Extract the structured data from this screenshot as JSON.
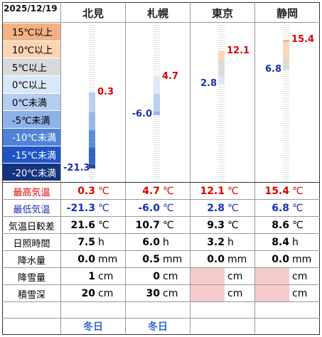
{
  "date": "2025/12/19",
  "stations": [
    {
      "name": "北見",
      "high": "0.3",
      "low": "-21.3",
      "range": "21.6",
      "sun": "7.5",
      "precip": "0.0",
      "snowfall": "1",
      "snowdepth": "20",
      "type": "冬日",
      "hi_num": 0.3,
      "lo_num": -21.3
    },
    {
      "name": "札幌",
      "high": "4.7",
      "low": "-6.0",
      "range": "10.7",
      "sun": "6.0",
      "precip": "0.5",
      "snowfall": "0",
      "snowdepth": "30",
      "type": "冬日",
      "hi_num": 4.7,
      "lo_num": -6.0
    },
    {
      "name": "東京",
      "high": "12.1",
      "low": "2.8",
      "range": "9.3",
      "sun": "3.2",
      "precip": "0.0",
      "snowfall": "",
      "snowdepth": "",
      "type": "",
      "hi_num": 12.1,
      "lo_num": 2.8
    },
    {
      "name": "静岡",
      "high": "15.4",
      "low": "6.8",
      "range": "8.6",
      "sun": "8.4",
      "precip": "0.0",
      "snowfall": "",
      "snowdepth": "",
      "type": "",
      "hi_num": 15.4,
      "lo_num": 6.8
    }
  ],
  "scale": [
    {
      "label": "15℃以上",
      "color": "#f4b183",
      "text": "#000000"
    },
    {
      "label": "10℃以上",
      "color": "#fbd5b5",
      "text": "#000000"
    },
    {
      "label": "5℃以上",
      "color": "#d9d9d9",
      "text": "#000000"
    },
    {
      "label": "0℃以上",
      "color": "#d9e8f8",
      "text": "#000000"
    },
    {
      "label": "0℃未満",
      "color": "#b4cdf0",
      "text": "#000000"
    },
    {
      "label": "-5℃未満",
      "color": "#8eb1e8",
      "text": "#000000"
    },
    {
      "label": "-10℃未満",
      "color": "#4f83d9",
      "text": "#ffffff"
    },
    {
      "label": "-15℃未満",
      "color": "#1f54c6",
      "text": "#ffffff"
    },
    {
      "label": "-20℃未満",
      "color": "#15347f",
      "text": "#ffffff"
    }
  ],
  "rows": {
    "high": "最高気温",
    "low": "最低気温",
    "range": "気温日較差",
    "sun": "日照時間",
    "precip": "降水量",
    "snowfall": "降雪量",
    "snowdepth": "積雪深"
  },
  "units": {
    "temp": "℃",
    "sun": "h",
    "precip": "mm",
    "snow": "cm"
  },
  "colors": {
    "high_text": "#e00000",
    "low_text": "#1a2fb0",
    "nodata_fill": "#f4cccc",
    "footer_text": "#3366cc"
  }
}
